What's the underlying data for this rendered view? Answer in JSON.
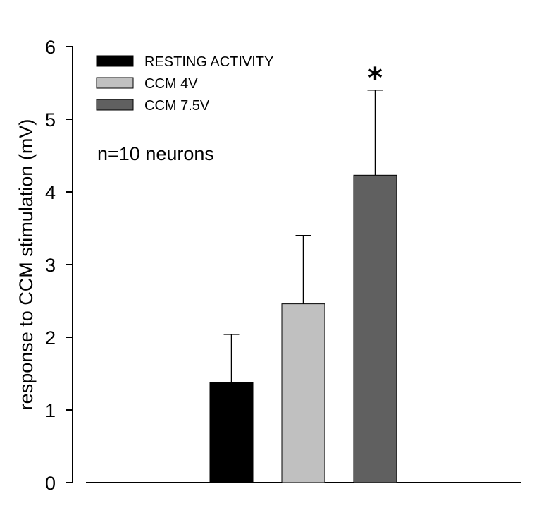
{
  "chart_data": {
    "type": "bar",
    "title": "",
    "xlabel": "",
    "ylabel": "response to CCM stimulation (mV)",
    "ylim": [
      0,
      6
    ],
    "yticks": [
      0,
      1,
      2,
      3,
      4,
      5,
      6
    ],
    "grid": false,
    "legend_position": "top-left",
    "series": [
      {
        "name": "RESTING ACTIVITY",
        "value": 1.38,
        "error": 0.66,
        "color": "#000000",
        "significance": ""
      },
      {
        "name": "CCM 4V",
        "value": 2.46,
        "error": 0.94,
        "color": "#c0c0c0",
        "significance": ""
      },
      {
        "name": "CCM 7.5V",
        "value": 4.23,
        "error": 1.17,
        "color": "#606060",
        "significance": "*"
      }
    ],
    "annotation": "n=10 neurons"
  }
}
